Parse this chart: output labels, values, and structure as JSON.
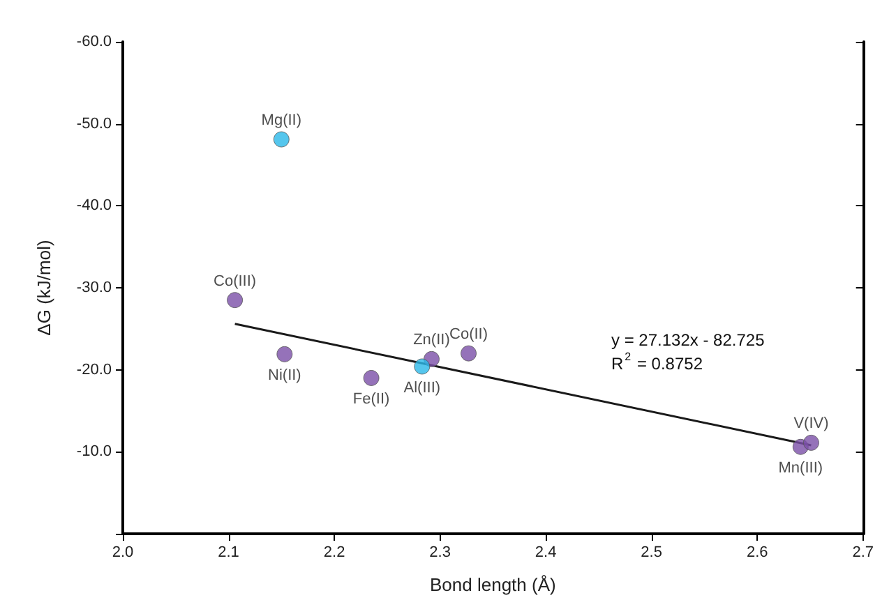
{
  "chart_data": {
    "type": "scatter",
    "xlabel": "Bond length (Å)",
    "ylabel": "ΔG (kJ/mol)",
    "xlim": [
      2.0,
      2.7
    ],
    "ylim": [
      0,
      -60
    ],
    "xticks": [
      {
        "value": 2.0,
        "label": "2.0"
      },
      {
        "value": 2.1,
        "label": "2.1"
      },
      {
        "value": 2.2,
        "label": "2.2"
      },
      {
        "value": 2.3,
        "label": "2.3"
      },
      {
        "value": 2.4,
        "label": "2.4"
      },
      {
        "value": 2.5,
        "label": "2.5"
      },
      {
        "value": 2.6,
        "label": "2.6"
      },
      {
        "value": 2.7,
        "label": "2.7"
      }
    ],
    "yticks": [
      {
        "value": 0,
        "label": null
      },
      {
        "value": -10,
        "label": "-10.0"
      },
      {
        "value": -20,
        "label": "-20.0"
      },
      {
        "value": -30,
        "label": "-30.0"
      },
      {
        "value": -40,
        "label": "-40.0"
      },
      {
        "value": -50,
        "label": "-50.0"
      },
      {
        "value": -60,
        "label": "-60.0"
      }
    ],
    "grid": false,
    "marker": "circle",
    "series": [
      {
        "color": "#7b4fa8",
        "x": [
          2.106,
          2.153,
          2.235,
          2.292,
          2.327,
          2.641,
          2.651
        ],
        "values": [
          -28.5,
          -21.9,
          -19.0,
          -21.3,
          -22.0,
          -10.6,
          -11.1
        ]
      },
      {
        "color": "#2bb8e8",
        "x": [
          2.15,
          2.283
        ],
        "values": [
          -48.1,
          -20.4
        ]
      },
      {
        "type": "line",
        "color": "#1a1a1a",
        "x": [
          2.106,
          2.651
        ],
        "values": [
          -25.6,
          -10.8
        ],
        "marker": "none",
        "line_style": "solid"
      }
    ],
    "annotations": [
      {
        "text": "Mg(II)",
        "x": 2.15,
        "y": -48.1
      },
      {
        "text": "Co(III)",
        "x": 2.106,
        "y": -28.5
      },
      {
        "text": "Ni(II)",
        "x": 2.153,
        "y": -21.9
      },
      {
        "text": "Fe(II)",
        "x": 2.235,
        "y": -19.0
      },
      {
        "text": "Zn(II)",
        "x": 2.292,
        "y": -21.3
      },
      {
        "text": "Al(III)",
        "x": 2.283,
        "y": -20.4
      },
      {
        "text": "Co(II)",
        "x": 2.327,
        "y": -22.0
      },
      {
        "text": "V(IV)",
        "x": 2.651,
        "y": -11.1
      },
      {
        "text": "Mn(III)",
        "x": 2.641,
        "y": -10.6
      },
      "y = 27.132x - 82.725",
      "R$^{2}$ = 0.8752"
    ]
  }
}
